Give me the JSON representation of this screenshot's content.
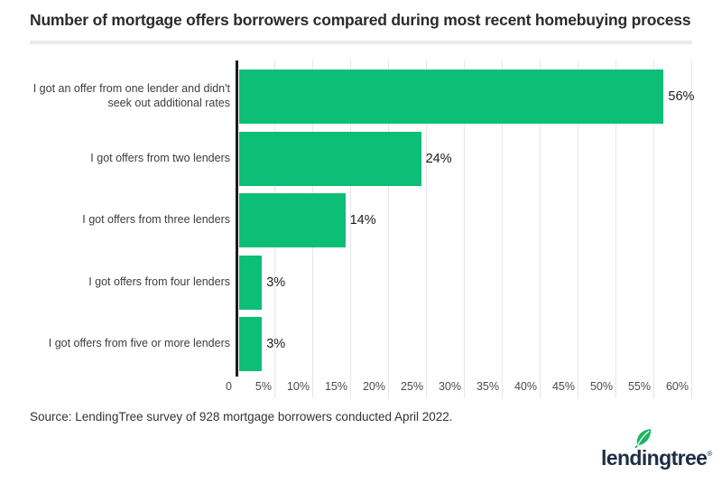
{
  "title": "Number of mortgage offers borrowers compared during most recent homebuying process",
  "source": "Source: LendingTree survey of 928 mortgage borrowers conducted April 2022.",
  "logo": {
    "text": "lendingtree",
    "registered": "®"
  },
  "colors": {
    "bar_green": "#0dbe76",
    "leaf_green": "#1eb564",
    "logo_navy": "#1d2e44",
    "gridline": "#e6e6e6",
    "axis": "#1a1a1a"
  },
  "chart_data": {
    "type": "bar",
    "orientation": "horizontal",
    "title": "Number of mortgage offers borrowers compared during most recent homebuying process",
    "categories": [
      "I got an offer from one lender and didn't seek out additional rates",
      "I got offers from two lenders",
      "I got offers from three lenders",
      "I got offers from four lenders",
      "I got offers from five or more lenders"
    ],
    "values": [
      56,
      24,
      14,
      3,
      3
    ],
    "value_labels": [
      "56%",
      "24%",
      "14%",
      "3%",
      "3%"
    ],
    "xlim": [
      0,
      60
    ],
    "x_ticks": [
      "0",
      "5%",
      "10%",
      "15%",
      "20%",
      "25%",
      "30%",
      "35%",
      "40%",
      "45%",
      "50%",
      "55%",
      "60%"
    ],
    "grid": true,
    "legend": false
  }
}
